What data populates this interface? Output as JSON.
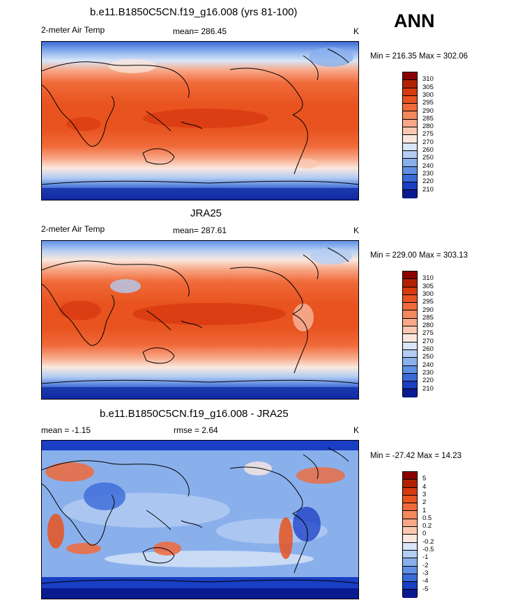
{
  "season": "ANN",
  "panels": [
    {
      "title": "b.e11.B1850C5CN.f19_g16.008 (yrs 81-100)",
      "left_label": "2-meter Air Temp",
      "center_label": "mean= 286.45",
      "right_label": "K",
      "minmax": "Min = 216.35 Max = 302.06",
      "type": "field"
    },
    {
      "title": "JRA25",
      "left_label": "2-meter Air Temp",
      "center_label": "mean= 287.61",
      "right_label": "K",
      "minmax": "Min = 229.00 Max = 303.13",
      "type": "field"
    },
    {
      "title": "b.e11.B1850C5CN.f19_g16.008 - JRA25",
      "left_label": "mean =  -1.15",
      "center_label": "rmse =   2.64",
      "right_label": "K",
      "minmax": "Min = -27.42 Max =  14.23",
      "type": "diff"
    }
  ],
  "colorbar_field": {
    "labels": [
      "310",
      "305",
      "300",
      "295",
      "290",
      "285",
      "280",
      "275",
      "270",
      "260",
      "250",
      "240",
      "230",
      "220",
      "210"
    ],
    "colors": [
      "#8b0000",
      "#b22200",
      "#d83a10",
      "#e8531f",
      "#f06a3a",
      "#f5895e",
      "#f8a888",
      "#fac8b0",
      "#fae8de",
      "#d8e6f8",
      "#b3cdf3",
      "#8ab0ec",
      "#6090e4",
      "#3a6ad8",
      "#1a3ec4",
      "#0a1a90"
    ]
  },
  "colorbar_diff": {
    "labels": [
      "5",
      "4",
      "3",
      "2",
      "1",
      "0.5",
      "0.2",
      "0",
      "-0.2",
      "-0.5",
      "-1",
      "-2",
      "-3",
      "-4",
      "-5"
    ],
    "colors": [
      "#8b0000",
      "#b22200",
      "#d83a10",
      "#e8531f",
      "#f06a3a",
      "#f5895e",
      "#f8a888",
      "#fac8b0",
      "#fae8de",
      "#d8e6f8",
      "#b3cdf3",
      "#8ab0ec",
      "#6090e4",
      "#3a6ad8",
      "#1a3ec4",
      "#0a1a90"
    ]
  }
}
